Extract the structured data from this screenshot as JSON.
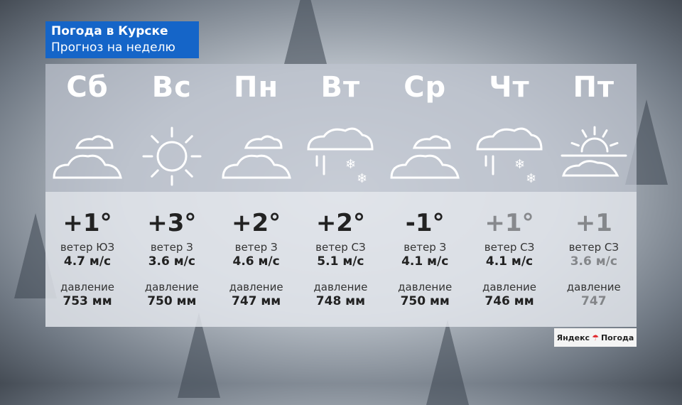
{
  "header": {
    "title": "Погода в Курске",
    "subtitle": "Прогноз на неделю"
  },
  "labels": {
    "wind": "ветер",
    "pressure": "давление"
  },
  "days": [
    {
      "day": "Сб",
      "icon": "cloud-icon",
      "temp": "+1°",
      "wind_dir": "ЮЗ",
      "wind": "4.7 м/с",
      "pressure": "753 мм"
    },
    {
      "day": "Вс",
      "icon": "sun-icon",
      "temp": "+3°",
      "wind_dir": "З",
      "wind": "3.6 м/с",
      "pressure": "750 мм"
    },
    {
      "day": "Пн",
      "icon": "cloud-icon",
      "temp": "+2°",
      "wind_dir": "З",
      "wind": "4.6 м/с",
      "pressure": "747 мм"
    },
    {
      "day": "Вт",
      "icon": "cloud-rain-snow-icon",
      "temp": "+2°",
      "wind_dir": "СЗ",
      "wind": "5.1 м/с",
      "pressure": "748 мм"
    },
    {
      "day": "Ср",
      "icon": "cloud-icon",
      "temp": "-1°",
      "wind_dir": "З",
      "wind": "4.1 м/с",
      "pressure": "750 мм"
    },
    {
      "day": "Чт",
      "icon": "cloud-rain-snow-icon",
      "temp": "+1°",
      "wind_dir": "СЗ",
      "wind": "4.1 м/с",
      "pressure": "746 мм"
    },
    {
      "day": "Пт",
      "icon": "sun-behind-cloud-icon",
      "temp": "+1",
      "wind_dir": "СЗ",
      "wind": "3.6 м/с",
      "pressure": "747"
    }
  ],
  "logo": {
    "left": "Яндекс",
    "right": "Погода",
    "accent": "#e0262a"
  },
  "colors": {
    "title_bg": "#1565c8"
  }
}
